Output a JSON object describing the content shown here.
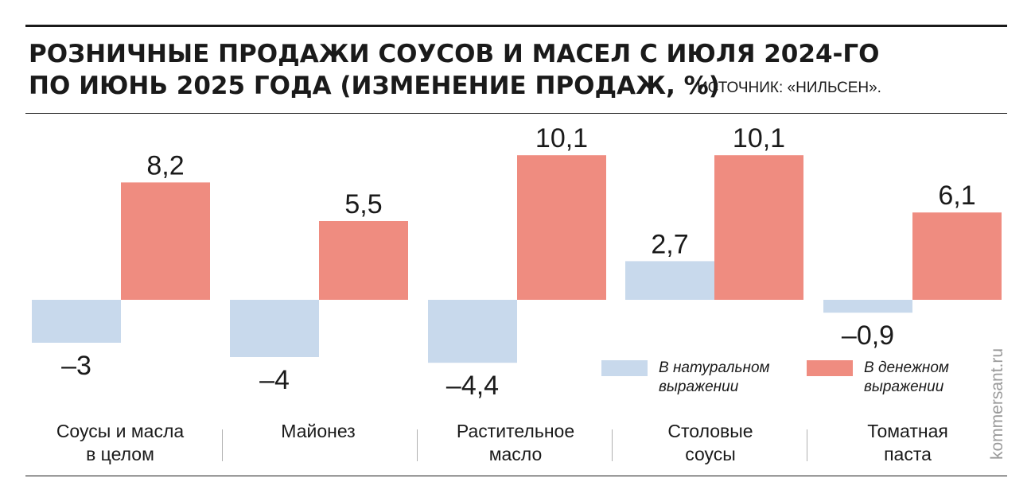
{
  "header": {
    "title_line1": "РОЗНИЧНЫЕ ПРОДАЖИ СОУСОВ И МАСЕЛ С ИЮЛЯ 2024-ГО",
    "title_line2": "ПО ИЮНЬ 2025 ГОДА (ИЗМЕНЕНИЕ ПРОДАЖ, %)",
    "source": "ИСТОЧНИК: «НИЛЬСЕН»."
  },
  "watermark": "kommersant.ru",
  "legend": {
    "items": [
      {
        "line1": "В натуральном",
        "line2": "выражении",
        "color": "#c8d9ec"
      },
      {
        "line1": "В денежном",
        "line2": "выражении",
        "color": "#ef8c80"
      }
    ]
  },
  "chart_data": {
    "type": "bar",
    "categories": [
      {
        "line1": "Соусы и масла",
        "line2": "в целом"
      },
      {
        "line1": "Майонез",
        "line2": ""
      },
      {
        "line1": "Растительное",
        "line2": "масло"
      },
      {
        "line1": "Столовые",
        "line2": "соусы"
      },
      {
        "line1": "Томатная",
        "line2": "паста"
      }
    ],
    "series": [
      {
        "name": "В натуральном выражении",
        "values": [
          -3,
          -4,
          -4.4,
          2.7,
          -0.9
        ],
        "labels": [
          "–3",
          "–4",
          "–4,4",
          "2,7",
          "–0,9"
        ],
        "color": "#c8d9ec"
      },
      {
        "name": "В денежном выражении",
        "values": [
          8.2,
          5.5,
          10.1,
          10.1,
          6.1
        ],
        "labels": [
          "8,2",
          "5,5",
          "10,1",
          "10,1",
          "6,1"
        ],
        "color": "#ef8c80"
      }
    ],
    "title": "РОЗНИЧНЫЕ ПРОДАЖИ СОУСОВ И МАСЕЛ С ИЮЛЯ 2024-ГО ПО ИЮНЬ 2025 ГОДА (ИЗМЕНЕНИЕ ПРОДАЖ, %)",
    "ylim": [
      -5,
      11
    ],
    "grid": false,
    "legend_position": "bottom-right"
  }
}
